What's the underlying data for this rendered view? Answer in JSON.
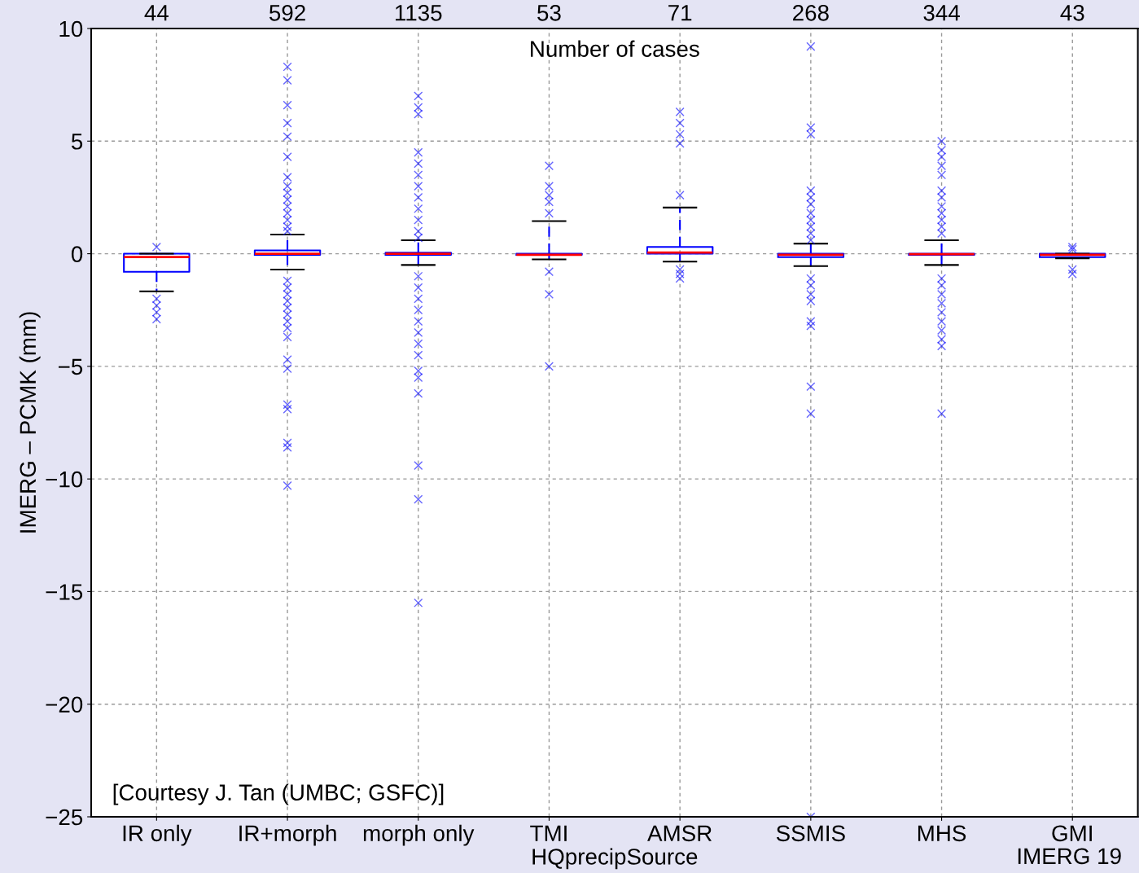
{
  "chart_data": {
    "type": "box",
    "xlabel": "HQprecipSource",
    "ylabel": "IMERG – PCMK (mm)",
    "categories": [
      "IR only",
      "IR+morph",
      "morph only",
      "TMI",
      "AMSR",
      "SSMIS",
      "MHS",
      "GMI"
    ],
    "ylim": [
      -25,
      10
    ],
    "yticks": [
      {
        "value": -25,
        "label": "−25"
      },
      {
        "value": -20,
        "label": "−20"
      },
      {
        "value": -15,
        "label": "−15"
      },
      {
        "value": -10,
        "label": "−10"
      },
      {
        "value": -5,
        "label": "−5"
      },
      0,
      5,
      10
    ],
    "grid": true,
    "marker": "cross",
    "series": [
      {
        "color": "#0000ff",
        "boxes": [
          {
            "low": -1.67,
            "q1": -0.8,
            "median": -0.15,
            "q3": 0,
            "high": 0,
            "outliers": [
              0.3,
              -2.0,
              -2.3,
              -2.6,
              -2.9
            ]
          },
          {
            "low": -0.7,
            "q1": -0.05,
            "median": 0,
            "q3": 0.15,
            "high": 0.85,
            "outliers": [
              8.3,
              7.7,
              6.6,
              5.8,
              5.2,
              4.3,
              3.4,
              3.0,
              2.7,
              2.4,
              2.1,
              1.8,
              1.5,
              1.2,
              1.0,
              -1.2,
              -1.5,
              -1.8,
              -2.1,
              -2.4,
              -2.7,
              -3.0,
              -3.3,
              -3.7,
              -4.7,
              -5.1,
              -6.7,
              -6.9,
              -8.4,
              -8.6,
              -10.3
            ]
          },
          {
            "low": -0.5,
            "q1": -0.05,
            "median": 0,
            "q3": 0.05,
            "high": 0.6,
            "outliers": [
              7.0,
              6.5,
              6.2,
              4.5,
              4.0,
              3.5,
              3.0,
              2.5,
              2.0,
              1.5,
              1.0,
              0.7,
              -1.0,
              -1.5,
              -2.0,
              -2.5,
              -3.0,
              -3.5,
              -4.0,
              -4.5,
              -5.2,
              -5.5,
              -6.2,
              -9.4,
              -10.9,
              -15.5
            ]
          },
          {
            "low": -0.25,
            "q1": -0.05,
            "median": -0.05,
            "q3": 0,
            "high": 1.45,
            "outliers": [
              3.9,
              3.0,
              2.6,
              2.3,
              1.8,
              -0.8,
              -1.8,
              -5.0
            ]
          },
          {
            "low": -0.35,
            "q1": 0,
            "median": 0.05,
            "q3": 0.3,
            "high": 2.05,
            "outliers": [
              6.3,
              5.8,
              5.3,
              4.9,
              2.6,
              -0.7,
              -0.9,
              -1.1
            ]
          },
          {
            "low": -0.55,
            "q1": -0.15,
            "median": -0.05,
            "q3": 0,
            "high": 0.45,
            "outliers": [
              9.2,
              5.6,
              5.3,
              2.8,
              2.5,
              2.2,
              1.8,
              1.5,
              1.2,
              0.9,
              0.6,
              -1.1,
              -1.4,
              -1.8,
              -2.1,
              -3.0,
              -3.2,
              -5.9,
              -7.1,
              -25.0
            ]
          },
          {
            "low": -0.5,
            "q1": -0.05,
            "median": -0.02,
            "q3": 0,
            "high": 0.6,
            "outliers": [
              5.0,
              4.6,
              4.3,
              3.9,
              3.5,
              2.8,
              2.5,
              2.1,
              1.8,
              1.5,
              1.2,
              0.9,
              -1.1,
              -1.4,
              -1.8,
              -2.2,
              -2.6,
              -3.0,
              -3.4,
              -3.8,
              -4.1,
              -7.1
            ]
          },
          {
            "low": -0.2,
            "q1": -0.15,
            "median": -0.05,
            "q3": 0,
            "high": 0,
            "outliers": [
              0.3,
              0.2,
              -0.7,
              -0.9
            ]
          }
        ]
      }
    ],
    "annotations": [
      "44",
      "592",
      "1135",
      "53",
      "71",
      "268",
      "344",
      "43",
      "Number of cases",
      "[Courtesy J. Tan (UMBC; GSFC)]",
      "IMERG 19"
    ]
  }
}
